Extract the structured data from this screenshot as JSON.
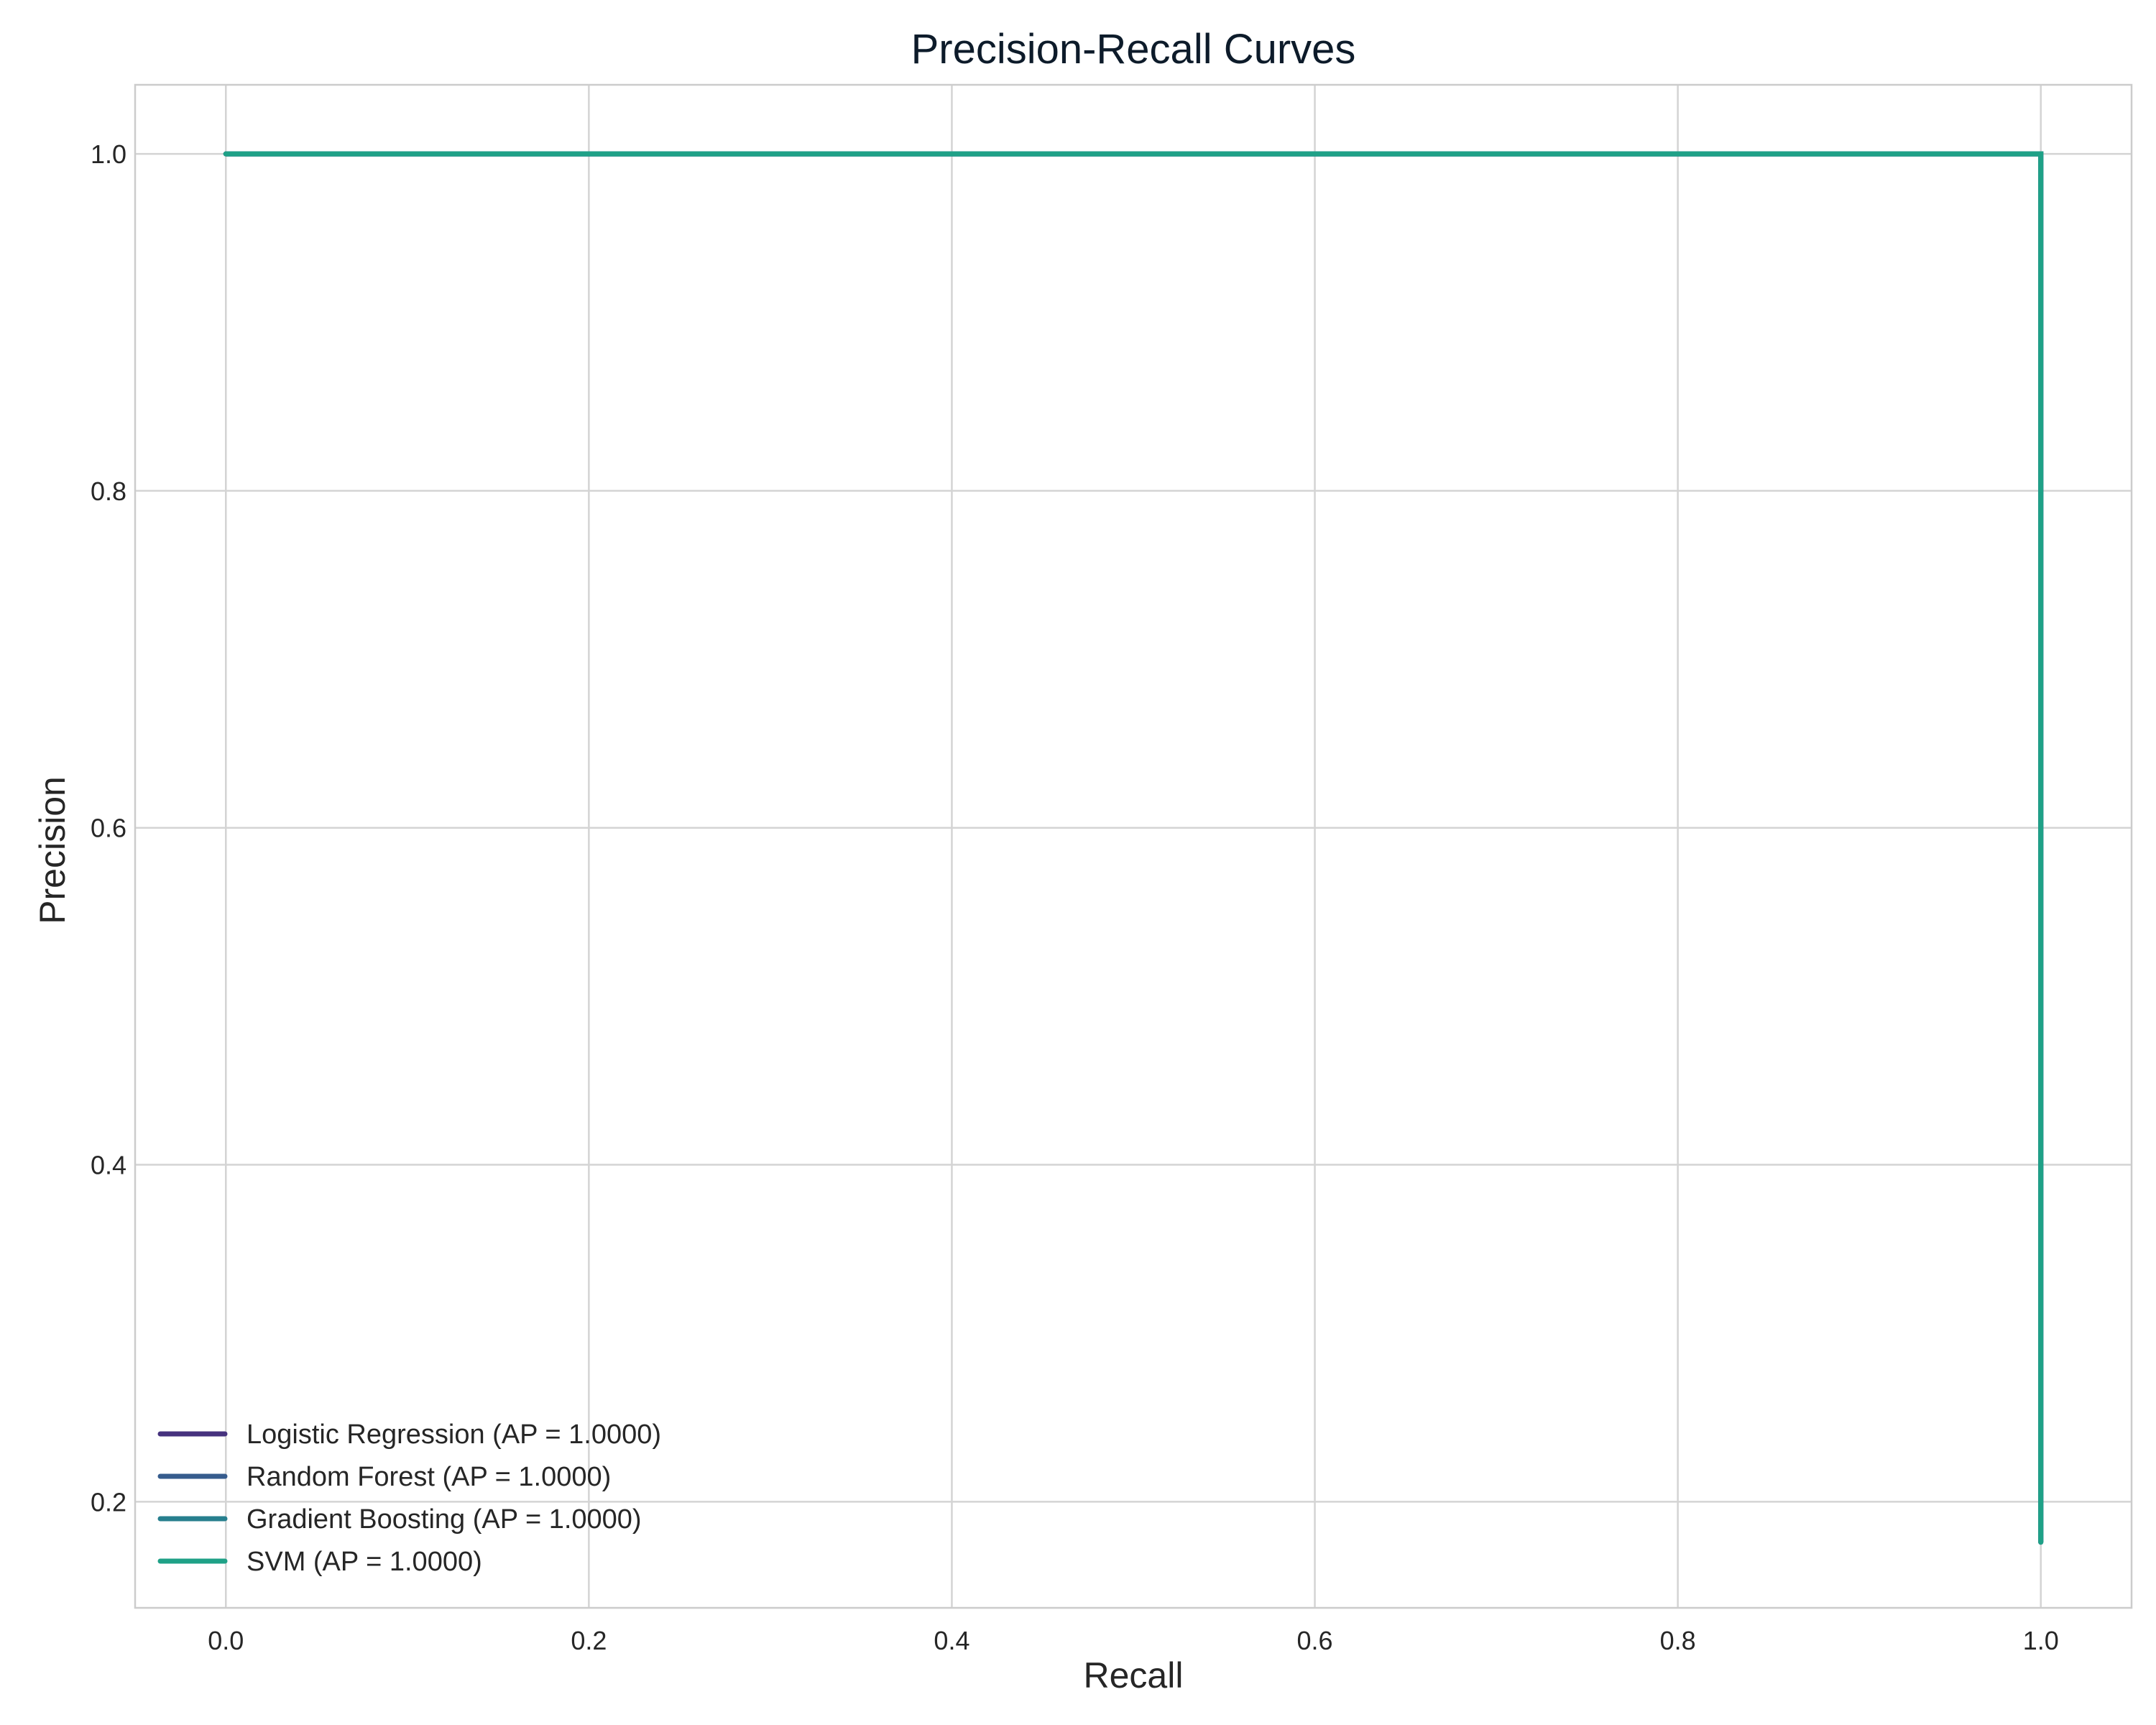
{
  "chart_data": {
    "type": "line",
    "title": "Precision-Recall Curves",
    "xlabel": "Recall",
    "ylabel": "Precision",
    "xlim": [
      -0.05,
      1.05
    ],
    "ylim": [
      0.137,
      1.041
    ],
    "xticks": [
      0.0,
      0.2,
      0.4,
      0.6,
      0.8,
      1.0
    ],
    "xtick_labels": [
      "0.0",
      "0.2",
      "0.4",
      "0.6",
      "0.8",
      "1.0"
    ],
    "yticks": [
      0.2,
      0.4,
      0.6,
      0.8,
      1.0
    ],
    "ytick_labels": [
      "0.2",
      "0.4",
      "0.6",
      "0.8",
      "1.0"
    ],
    "grid": true,
    "legend_position": "lower-left",
    "series": [
      {
        "name": "Logistic Regression (AP = 1.0000)",
        "color": "#46327e",
        "x": [
          0.0,
          1.0,
          1.0
        ],
        "y": [
          1.0,
          1.0,
          0.176
        ]
      },
      {
        "name": "Random Forest (AP = 1.0000)",
        "color": "#365c8d",
        "x": [
          0.0,
          1.0,
          1.0
        ],
        "y": [
          1.0,
          1.0,
          0.176
        ]
      },
      {
        "name": "Gradient Boosting (AP = 1.0000)",
        "color": "#277f8e",
        "x": [
          0.0,
          1.0,
          1.0
        ],
        "y": [
          1.0,
          1.0,
          0.176
        ]
      },
      {
        "name": "SVM (AP = 1.0000)",
        "color": "#1fa187",
        "x": [
          0.0,
          1.0,
          1.0
        ],
        "y": [
          1.0,
          1.0,
          0.176
        ]
      }
    ]
  }
}
